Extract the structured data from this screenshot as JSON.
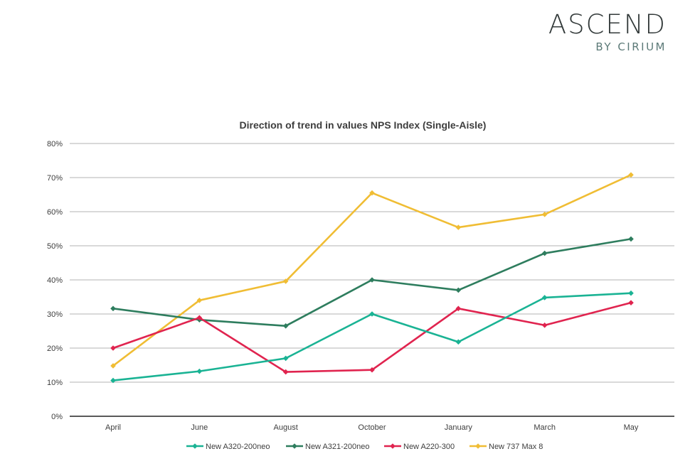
{
  "logo": {
    "main": "ASCEND",
    "sub": "BY CIRIUM"
  },
  "chart_data": {
    "type": "line",
    "title": "Direction of trend in values NPS Index (Single-Aisle)",
    "xlabel": "",
    "ylabel": "",
    "ylim": [
      0,
      80
    ],
    "y_ticks": [
      "0%",
      "10%",
      "20%",
      "30%",
      "40%",
      "50%",
      "60%",
      "70%",
      "80%"
    ],
    "grid": true,
    "legend_position": "bottom",
    "categories": [
      "April",
      "June",
      "August",
      "October",
      "January",
      "March",
      "May"
    ],
    "series": [
      {
        "name": "New A320-200neo",
        "color": "#1ab394",
        "values": [
          10.5,
          13.2,
          17.0,
          30.0,
          21.8,
          34.8,
          36.1
        ]
      },
      {
        "name": "New A321-200neo",
        "color": "#2e7d5e",
        "values": [
          31.6,
          28.3,
          26.5,
          40.0,
          37.0,
          47.8,
          52.0
        ]
      },
      {
        "name": "New A220-300",
        "color": "#e0244f",
        "values": [
          20.0,
          28.9,
          13.0,
          13.6,
          31.6,
          26.7,
          33.3
        ]
      },
      {
        "name": "New 737 Max 8",
        "color": "#f0bd34",
        "values": [
          14.8,
          34.0,
          39.6,
          65.5,
          55.4,
          59.2,
          70.8
        ]
      }
    ]
  }
}
